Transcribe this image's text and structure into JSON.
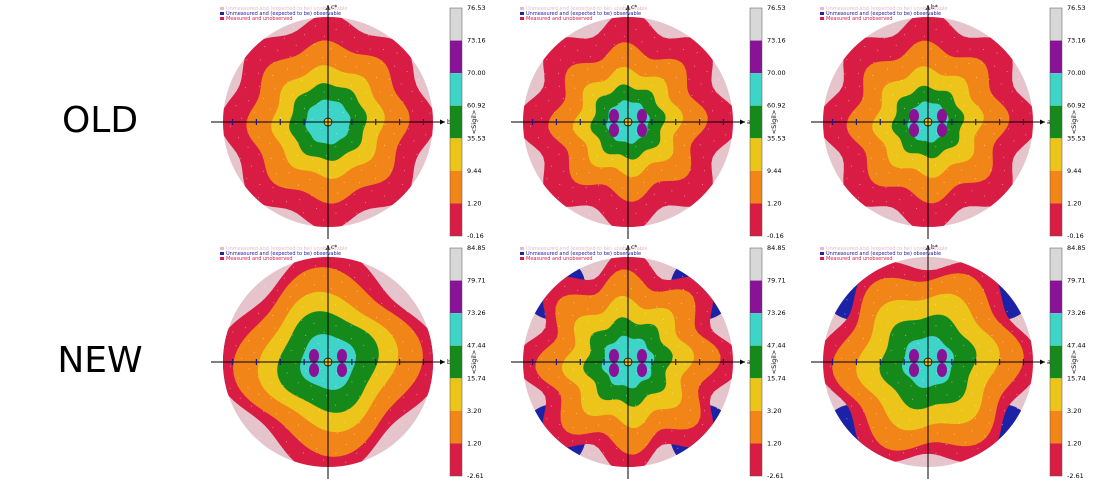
{
  "row_labels": {
    "old": "OLD",
    "new": "NEW"
  },
  "legend": {
    "items": [
      {
        "text": "Unmeasured and (expected to be) unobservable",
        "color": "#e8bcc4"
      },
      {
        "text": "Unmeasured and (expected to be) observable",
        "color": "#2020a0"
      },
      {
        "text": "Measured and unobserved",
        "color": "#d0204a"
      }
    ]
  },
  "colorbar_title": "<Sigil>",
  "zone_colors": [
    "#d81c44",
    "#f28518",
    "#ecc41a",
    "#158a1b",
    "#3fd4c8",
    "#8a1296",
    "#d8d8d8"
  ],
  "old_ticks": [
    "76.53",
    "73.16",
    "70.00",
    "60.92",
    "35.53",
    "9.44",
    "1.20",
    "-0.16"
  ],
  "new_ticks": [
    "84.85",
    "79.71",
    "73.26",
    "47.44",
    "15.74",
    "3.20",
    "1.20",
    "-2.61"
  ],
  "panels": [
    {
      "row": "old",
      "top_axis": "c*",
      "right_axis": "b*",
      "style": "old-a"
    },
    {
      "row": "old",
      "top_axis": "c*",
      "right_axis": "a*",
      "style": "old-b"
    },
    {
      "row": "old",
      "top_axis": "b*",
      "right_axis": "a*",
      "style": "old-c"
    },
    {
      "row": "new",
      "top_axis": "c*",
      "right_axis": "b*",
      "style": "new-a"
    },
    {
      "row": "new",
      "top_axis": "c*",
      "right_axis": "a*",
      "style": "new-b"
    },
    {
      "row": "new",
      "top_axis": "b*",
      "right_axis": "a*",
      "style": "new-c"
    }
  ]
}
